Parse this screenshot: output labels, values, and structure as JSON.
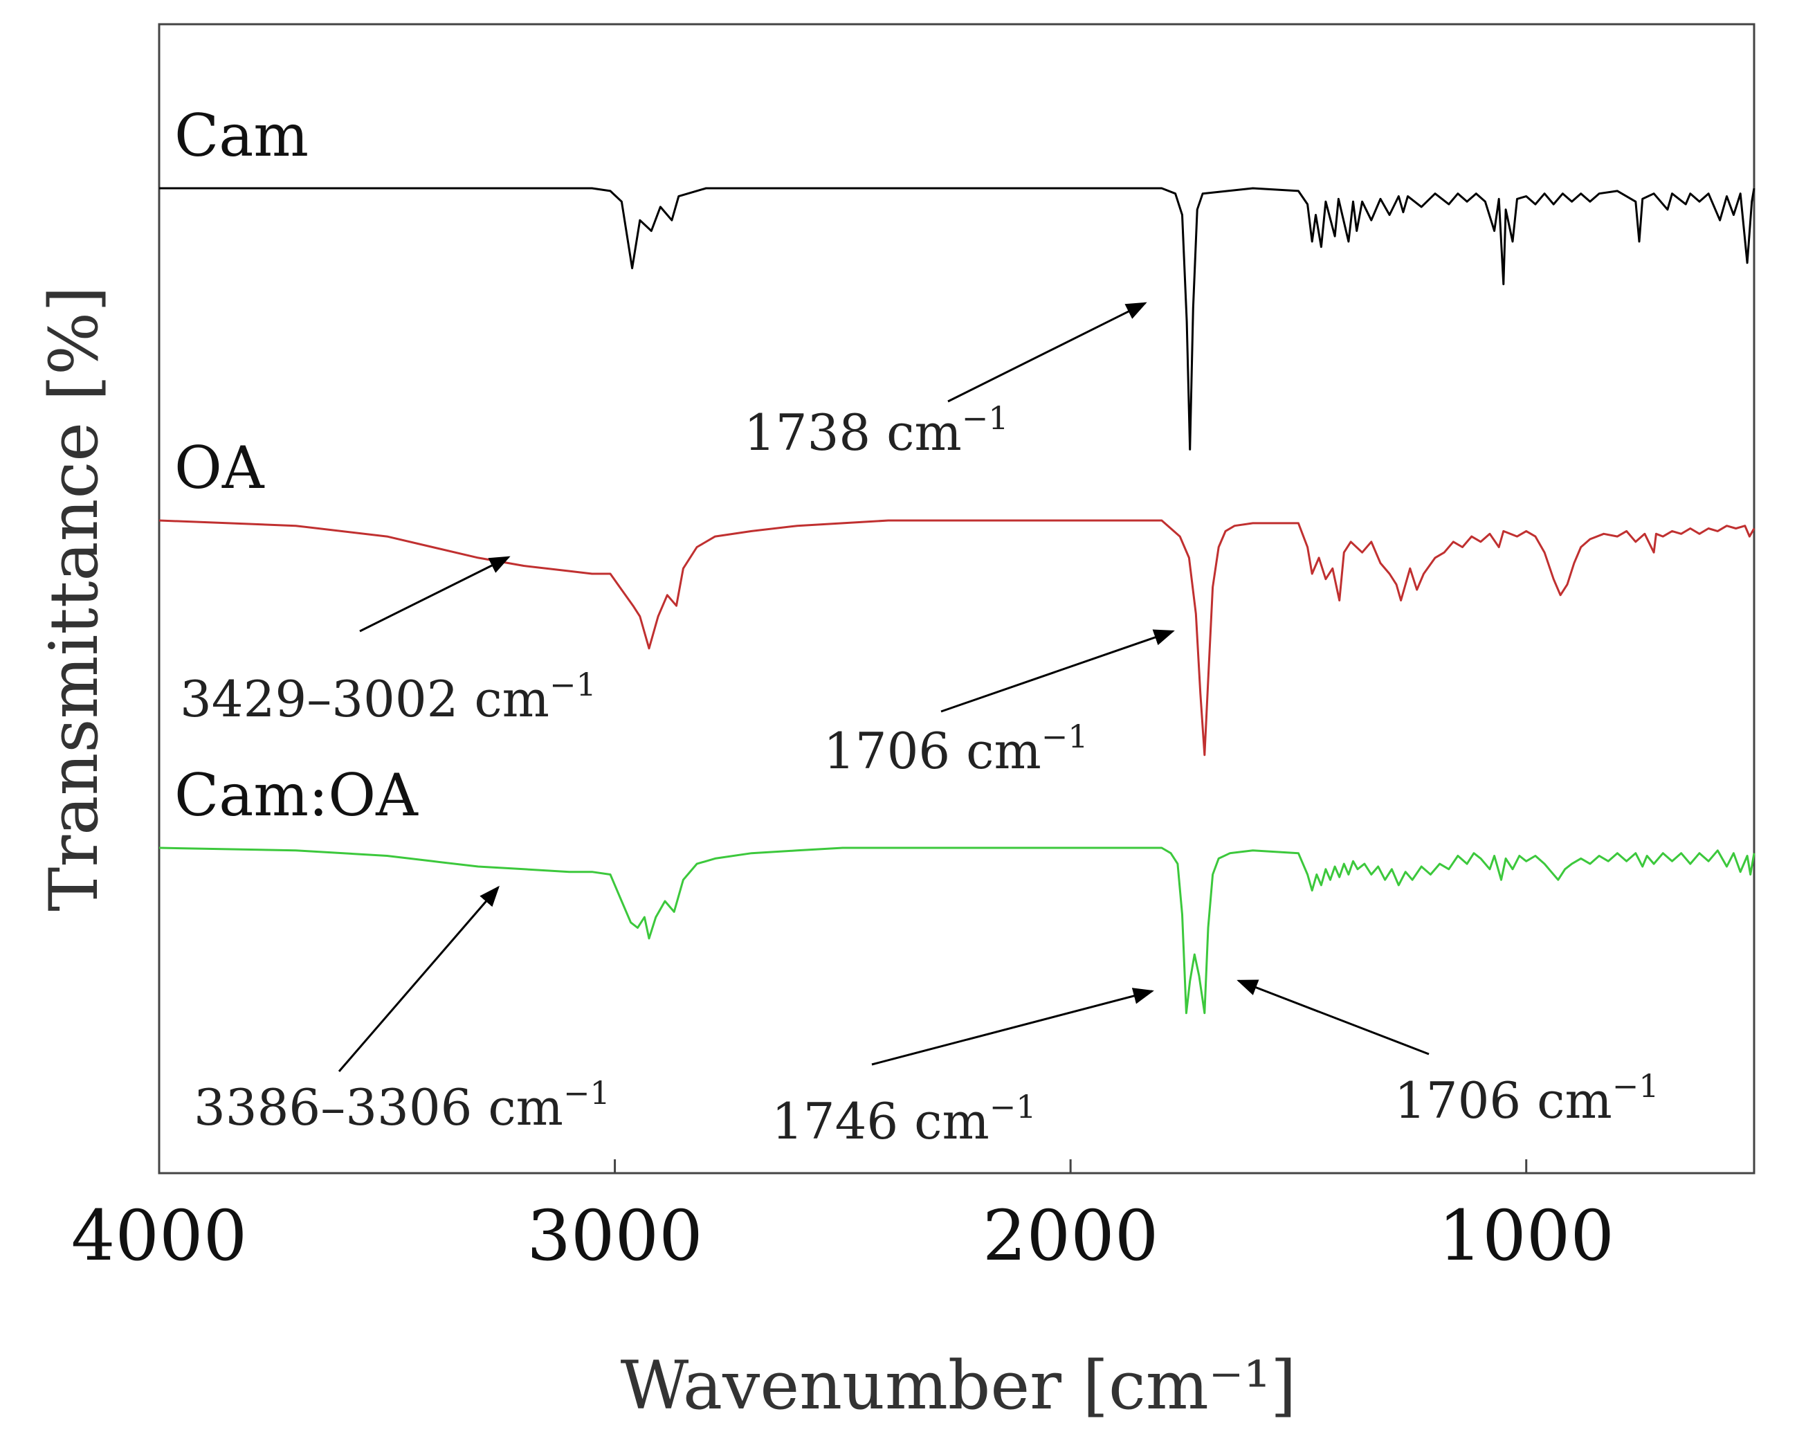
{
  "chart_data": {
    "type": "line",
    "title": "",
    "xlabel": "Wavenumber [cm⁻¹]",
    "ylabel": "Transmittance [%]",
    "xlim": [
      4000,
      500
    ],
    "x_reversed": true,
    "xticks": [
      4000,
      3000,
      2000,
      1000
    ],
    "yticks": [],
    "grid": false,
    "legend": "none",
    "series": [
      {
        "name": "Cam",
        "color": "#000000",
        "offset": 0.0,
        "points": [
          [
            4000,
            0
          ],
          [
            3050,
            0
          ],
          [
            3010,
            -0.01
          ],
          [
            2985,
            -0.05
          ],
          [
            2962,
            -0.3
          ],
          [
            2945,
            -0.12
          ],
          [
            2920,
            -0.16
          ],
          [
            2900,
            -0.07
          ],
          [
            2875,
            -0.12
          ],
          [
            2860,
            -0.03
          ],
          [
            2800,
            0
          ],
          [
            1800,
            0
          ],
          [
            1770,
            -0.02
          ],
          [
            1755,
            -0.1
          ],
          [
            1745,
            -0.5
          ],
          [
            1738,
            -0.98
          ],
          [
            1731,
            -0.45
          ],
          [
            1722,
            -0.08
          ],
          [
            1710,
            -0.02
          ],
          [
            1600,
            0
          ],
          [
            1500,
            -0.01
          ],
          [
            1480,
            -0.06
          ],
          [
            1470,
            -0.2
          ],
          [
            1462,
            -0.1
          ],
          [
            1450,
            -0.22
          ],
          [
            1440,
            -0.05
          ],
          [
            1420,
            -0.18
          ],
          [
            1412,
            -0.04
          ],
          [
            1390,
            -0.2
          ],
          [
            1380,
            -0.05
          ],
          [
            1372,
            -0.16
          ],
          [
            1360,
            -0.05
          ],
          [
            1340,
            -0.12
          ],
          [
            1320,
            -0.04
          ],
          [
            1300,
            -0.1
          ],
          [
            1280,
            -0.03
          ],
          [
            1270,
            -0.09
          ],
          [
            1260,
            -0.03
          ],
          [
            1230,
            -0.07
          ],
          [
            1200,
            -0.02
          ],
          [
            1170,
            -0.06
          ],
          [
            1150,
            -0.02
          ],
          [
            1130,
            -0.05
          ],
          [
            1110,
            -0.02
          ],
          [
            1090,
            -0.05
          ],
          [
            1070,
            -0.16
          ],
          [
            1060,
            -0.04
          ],
          [
            1050,
            -0.36
          ],
          [
            1045,
            -0.08
          ],
          [
            1030,
            -0.2
          ],
          [
            1020,
            -0.04
          ],
          [
            1000,
            -0.03
          ],
          [
            980,
            -0.06
          ],
          [
            960,
            -0.02
          ],
          [
            940,
            -0.06
          ],
          [
            920,
            -0.02
          ],
          [
            900,
            -0.05
          ],
          [
            880,
            -0.02
          ],
          [
            860,
            -0.05
          ],
          [
            840,
            -0.02
          ],
          [
            800,
            -0.01
          ],
          [
            760,
            -0.05
          ],
          [
            752,
            -0.2
          ],
          [
            745,
            -0.04
          ],
          [
            720,
            -0.02
          ],
          [
            690,
            -0.08
          ],
          [
            680,
            -0.02
          ],
          [
            650,
            -0.06
          ],
          [
            640,
            -0.02
          ],
          [
            620,
            -0.05
          ],
          [
            600,
            -0.02
          ],
          [
            575,
            -0.12
          ],
          [
            560,
            -0.03
          ],
          [
            545,
            -0.1
          ],
          [
            530,
            -0.02
          ],
          [
            515,
            -0.28
          ],
          [
            505,
            -0.05
          ],
          [
            500,
            0
          ]
        ]
      },
      {
        "name": "OA",
        "color": "#c03030",
        "offset": -1.28,
        "points": [
          [
            4000,
            0
          ],
          [
            3700,
            -0.02
          ],
          [
            3500,
            -0.06
          ],
          [
            3400,
            -0.1
          ],
          [
            3300,
            -0.14
          ],
          [
            3200,
            -0.17
          ],
          [
            3100,
            -0.19
          ],
          [
            3050,
            -0.2
          ],
          [
            3010,
            -0.2
          ],
          [
            2985,
            -0.26
          ],
          [
            2960,
            -0.32
          ],
          [
            2945,
            -0.36
          ],
          [
            2925,
            -0.48
          ],
          [
            2905,
            -0.36
          ],
          [
            2885,
            -0.28
          ],
          [
            2865,
            -0.32
          ],
          [
            2850,
            -0.18
          ],
          [
            2820,
            -0.1
          ],
          [
            2780,
            -0.06
          ],
          [
            2700,
            -0.04
          ],
          [
            2600,
            -0.02
          ],
          [
            2500,
            -0.01
          ],
          [
            2400,
            0
          ],
          [
            1800,
            0
          ],
          [
            1780,
            -0.03
          ],
          [
            1760,
            -0.06
          ],
          [
            1740,
            -0.14
          ],
          [
            1725,
            -0.35
          ],
          [
            1715,
            -0.65
          ],
          [
            1706,
            -0.88
          ],
          [
            1698,
            -0.6
          ],
          [
            1688,
            -0.25
          ],
          [
            1675,
            -0.1
          ],
          [
            1660,
            -0.04
          ],
          [
            1640,
            -0.02
          ],
          [
            1600,
            -0.01
          ],
          [
            1500,
            -0.01
          ],
          [
            1480,
            -0.1
          ],
          [
            1470,
            -0.2
          ],
          [
            1455,
            -0.14
          ],
          [
            1440,
            -0.22
          ],
          [
            1425,
            -0.18
          ],
          [
            1410,
            -0.3
          ],
          [
            1400,
            -0.12
          ],
          [
            1385,
            -0.08
          ],
          [
            1360,
            -0.12
          ],
          [
            1340,
            -0.08
          ],
          [
            1320,
            -0.16
          ],
          [
            1300,
            -0.2
          ],
          [
            1285,
            -0.24
          ],
          [
            1275,
            -0.3
          ],
          [
            1265,
            -0.24
          ],
          [
            1255,
            -0.18
          ],
          [
            1240,
            -0.26
          ],
          [
            1225,
            -0.2
          ],
          [
            1200,
            -0.14
          ],
          [
            1180,
            -0.12
          ],
          [
            1160,
            -0.08
          ],
          [
            1140,
            -0.1
          ],
          [
            1120,
            -0.06
          ],
          [
            1100,
            -0.08
          ],
          [
            1080,
            -0.05
          ],
          [
            1060,
            -0.1
          ],
          [
            1050,
            -0.04
          ],
          [
            1020,
            -0.06
          ],
          [
            1000,
            -0.04
          ],
          [
            980,
            -0.06
          ],
          [
            960,
            -0.12
          ],
          [
            940,
            -0.22
          ],
          [
            925,
            -0.28
          ],
          [
            910,
            -0.24
          ],
          [
            895,
            -0.16
          ],
          [
            880,
            -0.1
          ],
          [
            860,
            -0.07
          ],
          [
            830,
            -0.05
          ],
          [
            800,
            -0.06
          ],
          [
            780,
            -0.04
          ],
          [
            760,
            -0.08
          ],
          [
            740,
            -0.05
          ],
          [
            720,
            -0.12
          ],
          [
            715,
            -0.05
          ],
          [
            700,
            -0.06
          ],
          [
            680,
            -0.04
          ],
          [
            660,
            -0.05
          ],
          [
            640,
            -0.03
          ],
          [
            620,
            -0.05
          ],
          [
            600,
            -0.03
          ],
          [
            580,
            -0.04
          ],
          [
            560,
            -0.02
          ],
          [
            540,
            -0.03
          ],
          [
            520,
            -0.02
          ],
          [
            510,
            -0.06
          ],
          [
            500,
            -0.03
          ]
        ]
      },
      {
        "name": "Cam:OA",
        "color": "#3cc83c",
        "offset": -2.55,
        "points": [
          [
            4000,
            0
          ],
          [
            3700,
            -0.01
          ],
          [
            3500,
            -0.03
          ],
          [
            3400,
            -0.05
          ],
          [
            3300,
            -0.07
          ],
          [
            3200,
            -0.08
          ],
          [
            3100,
            -0.09
          ],
          [
            3050,
            -0.09
          ],
          [
            3010,
            -0.1
          ],
          [
            2985,
            -0.2
          ],
          [
            2965,
            -0.28
          ],
          [
            2950,
            -0.3
          ],
          [
            2935,
            -0.26
          ],
          [
            2925,
            -0.34
          ],
          [
            2910,
            -0.26
          ],
          [
            2890,
            -0.2
          ],
          [
            2870,
            -0.24
          ],
          [
            2850,
            -0.12
          ],
          [
            2820,
            -0.06
          ],
          [
            2780,
            -0.04
          ],
          [
            2700,
            -0.02
          ],
          [
            2600,
            -0.01
          ],
          [
            2500,
            0
          ],
          [
            1800,
            0
          ],
          [
            1780,
            -0.02
          ],
          [
            1765,
            -0.06
          ],
          [
            1755,
            -0.25
          ],
          [
            1746,
            -0.62
          ],
          [
            1738,
            -0.5
          ],
          [
            1728,
            -0.4
          ],
          [
            1718,
            -0.48
          ],
          [
            1706,
            -0.62
          ],
          [
            1698,
            -0.3
          ],
          [
            1688,
            -0.1
          ],
          [
            1675,
            -0.04
          ],
          [
            1650,
            -0.02
          ],
          [
            1600,
            -0.01
          ],
          [
            1500,
            -0.02
          ],
          [
            1480,
            -0.1
          ],
          [
            1470,
            -0.16
          ],
          [
            1460,
            -0.1
          ],
          [
            1450,
            -0.14
          ],
          [
            1440,
            -0.08
          ],
          [
            1430,
            -0.12
          ],
          [
            1420,
            -0.07
          ],
          [
            1410,
            -0.11
          ],
          [
            1400,
            -0.06
          ],
          [
            1390,
            -0.1
          ],
          [
            1380,
            -0.05
          ],
          [
            1370,
            -0.08
          ],
          [
            1355,
            -0.06
          ],
          [
            1340,
            -0.1
          ],
          [
            1325,
            -0.07
          ],
          [
            1310,
            -0.12
          ],
          [
            1295,
            -0.08
          ],
          [
            1280,
            -0.14
          ],
          [
            1265,
            -0.09
          ],
          [
            1250,
            -0.12
          ],
          [
            1230,
            -0.07
          ],
          [
            1210,
            -0.1
          ],
          [
            1190,
            -0.06
          ],
          [
            1170,
            -0.08
          ],
          [
            1150,
            -0.03
          ],
          [
            1130,
            -0.06
          ],
          [
            1115,
            -0.02
          ],
          [
            1100,
            -0.04
          ],
          [
            1080,
            -0.08
          ],
          [
            1070,
            -0.03
          ],
          [
            1055,
            -0.12
          ],
          [
            1045,
            -0.04
          ],
          [
            1030,
            -0.08
          ],
          [
            1015,
            -0.03
          ],
          [
            1000,
            -0.05
          ],
          [
            980,
            -0.03
          ],
          [
            960,
            -0.06
          ],
          [
            945,
            -0.09
          ],
          [
            930,
            -0.12
          ],
          [
            915,
            -0.08
          ],
          [
            900,
            -0.06
          ],
          [
            880,
            -0.04
          ],
          [
            860,
            -0.06
          ],
          [
            840,
            -0.03
          ],
          [
            820,
            -0.05
          ],
          [
            800,
            -0.02
          ],
          [
            780,
            -0.05
          ],
          [
            760,
            -0.02
          ],
          [
            745,
            -0.07
          ],
          [
            735,
            -0.03
          ],
          [
            720,
            -0.06
          ],
          [
            700,
            -0.02
          ],
          [
            680,
            -0.05
          ],
          [
            660,
            -0.02
          ],
          [
            640,
            -0.06
          ],
          [
            620,
            -0.02
          ],
          [
            600,
            -0.05
          ],
          [
            580,
            -0.01
          ],
          [
            560,
            -0.07
          ],
          [
            545,
            -0.02
          ],
          [
            530,
            -0.09
          ],
          [
            515,
            -0.03
          ],
          [
            508,
            -0.1
          ],
          [
            500,
            -0.02
          ]
        ]
      }
    ],
    "annotations": [
      {
        "text": "1738 cm",
        "sup": "−1",
        "series": "Cam",
        "target_x": 1738
      },
      {
        "text": "3429–3002 cm",
        "sup": "−1",
        "series": "OA",
        "target_x": 3215
      },
      {
        "text": "1706 cm",
        "sup": "−1",
        "series": "OA",
        "target_x": 1706
      },
      {
        "text": "3386–3306 cm",
        "sup": "−1",
        "series": "Cam:OA",
        "target_x": 3346
      },
      {
        "text": "1746 cm",
        "sup": "−1",
        "series": "Cam:OA",
        "target_x": 1746
      },
      {
        "text": "1706 cm",
        "sup": "−1",
        "series": "Cam:OA",
        "target_x": 1706
      }
    ]
  }
}
